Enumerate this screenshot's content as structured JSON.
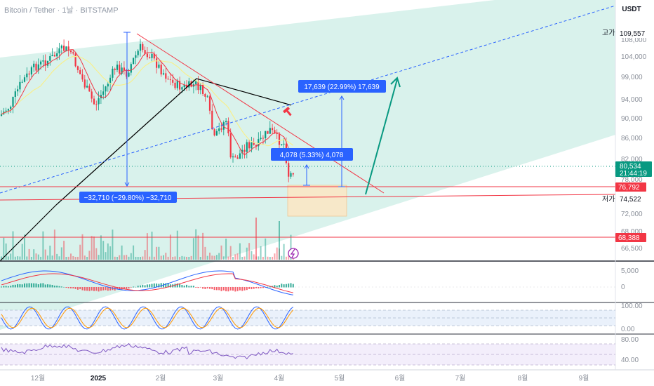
{
  "symbol_title": "Bitcoin / Tether · 1날 · BITSTAMP",
  "currency": "USDT",
  "price_scale": [
    "108,000",
    "104,000",
    "99,000",
    "94,000",
    "90,000",
    "86,000",
    "82,000",
    "78,000",
    "72,000",
    "68,000",
    "66,500"
  ],
  "high_marker": {
    "prefix": "고가",
    "value": "109,557"
  },
  "low_marker": {
    "prefix": "저가",
    "value": "74,522"
  },
  "current_price": {
    "value": "80,534",
    "countdown": "21:44:19",
    "color": "#089981"
  },
  "level_labels": [
    {
      "value": "76,792",
      "color": "#f23645"
    },
    {
      "value": "68,388",
      "color": "#f23645"
    }
  ],
  "measure_boxes": [
    {
      "text": "−32,710 (−29.80%) −32,710",
      "color": "#2962ff"
    },
    {
      "text": "4,078 (5.33%) 4,078",
      "color": "#2962ff"
    },
    {
      "text": "17,639 (22.99%) 17,639",
      "color": "#2962ff"
    }
  ],
  "macd_scale": [
    "5,000",
    "0"
  ],
  "stoch_scale": [
    "100.00",
    "0.00"
  ],
  "rsi_scale": [
    "80.00",
    "40.00"
  ],
  "time_axis": [
    "12월",
    "2025",
    "2월",
    "3월",
    "4월",
    "5월",
    "6월",
    "7월",
    "8월",
    "9월"
  ],
  "colors": {
    "bull": "#089981",
    "bear": "#f23645",
    "channel_fill": "#d9f2ec",
    "ma_black": "#000000",
    "ma_red": "#f23645",
    "ma_yellow": "#f7ef8f",
    "trend_blue": "#2962ff",
    "arrow_green": "#089981",
    "zone_fill": "#fbe7c6"
  },
  "icons": [
    "hammer-icon",
    "lightning-icon"
  ]
}
